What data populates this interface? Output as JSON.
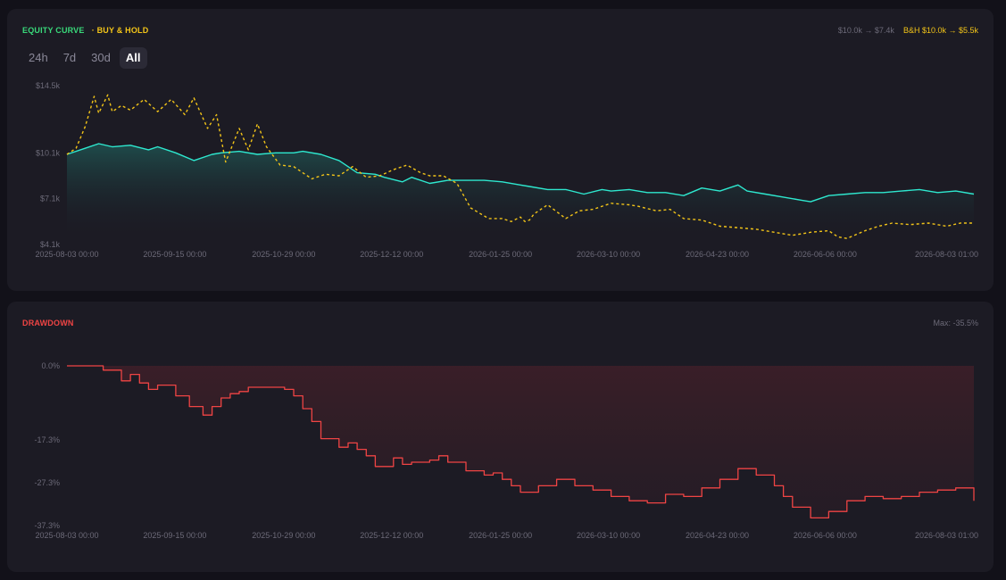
{
  "colors": {
    "equity": "#2ee8cf",
    "buy_hold": "#f2c418",
    "drawdown": "#ef4444",
    "equity_title": "#39d97a",
    "muted": "#6c6a78"
  },
  "equity_panel": {
    "title": "EQUITY CURVE",
    "legend_bh": "· BUY & HOLD",
    "summary_strategy": "$10.0k → $7.4k",
    "summary_bh": "B&H $10.0k → $5.5k",
    "tabs": [
      {
        "label": "24h",
        "active": false
      },
      {
        "label": "7d",
        "active": false
      },
      {
        "label": "30d",
        "active": false
      },
      {
        "label": "All",
        "active": true
      }
    ]
  },
  "drawdown_panel": {
    "title": "DRAWDOWN",
    "summary": "Max: -35.5%"
  },
  "chart_data": [
    {
      "type": "line",
      "title": "EQUITY CURVE",
      "ylim": [
        4.1,
        14.5
      ],
      "y_ticks": [
        "$14.5k",
        "$10.1k",
        "$7.1k",
        "$4.1k"
      ],
      "y_tick_values": [
        14.5,
        10.1,
        7.1,
        4.1
      ],
      "x_ticks": [
        "2025-08-03 00:00",
        "2025-09-15 00:00",
        "2025-10-29 00:00",
        "2025-12-12 00:00",
        "2026-01-25 00:00",
        "2026-03-10 00:00",
        "2026-04-23 00:00",
        "2026-06-06 00:00",
        "2026-08-03 01:00"
      ],
      "x_tick_positions": [
        0,
        0.119,
        0.239,
        0.358,
        0.478,
        0.597,
        0.717,
        0.836,
        1.0
      ],
      "series": [
        {
          "name": "EQUITY CURVE",
          "x": [
            0,
            0.02,
            0.035,
            0.05,
            0.07,
            0.09,
            0.1,
            0.12,
            0.14,
            0.16,
            0.17,
            0.19,
            0.21,
            0.23,
            0.25,
            0.26,
            0.28,
            0.3,
            0.32,
            0.34,
            0.35,
            0.37,
            0.38,
            0.4,
            0.42,
            0.44,
            0.46,
            0.48,
            0.5,
            0.51,
            0.53,
            0.55,
            0.57,
            0.59,
            0.6,
            0.62,
            0.64,
            0.66,
            0.68,
            0.7,
            0.72,
            0.74,
            0.75,
            0.77,
            0.79,
            0.81,
            0.82,
            0.84,
            0.86,
            0.88,
            0.9,
            0.92,
            0.94,
            0.96,
            0.98,
            1.0
          ],
          "values": [
            10.0,
            10.4,
            10.7,
            10.5,
            10.6,
            10.3,
            10.5,
            10.1,
            9.6,
            10.0,
            10.1,
            10.2,
            10.0,
            10.1,
            10.1,
            10.2,
            10.0,
            9.6,
            8.8,
            8.7,
            8.5,
            8.2,
            8.5,
            8.1,
            8.3,
            8.3,
            8.3,
            8.2,
            8.0,
            7.9,
            7.7,
            7.7,
            7.4,
            7.7,
            7.6,
            7.7,
            7.5,
            7.5,
            7.3,
            7.8,
            7.6,
            8.0,
            7.6,
            7.4,
            7.2,
            7.0,
            6.9,
            7.3,
            7.4,
            7.5,
            7.5,
            7.6,
            7.7,
            7.5,
            7.6,
            7.4
          ]
        },
        {
          "name": "BUY & HOLD",
          "x": [
            0,
            0.01,
            0.02,
            0.03,
            0.035,
            0.045,
            0.05,
            0.06,
            0.07,
            0.085,
            0.1,
            0.115,
            0.13,
            0.14,
            0.155,
            0.165,
            0.175,
            0.19,
            0.2,
            0.21,
            0.22,
            0.235,
            0.25,
            0.27,
            0.285,
            0.3,
            0.315,
            0.33,
            0.345,
            0.36,
            0.375,
            0.39,
            0.4,
            0.415,
            0.43,
            0.445,
            0.465,
            0.48,
            0.49,
            0.5,
            0.505,
            0.51,
            0.515,
            0.53,
            0.55,
            0.565,
            0.58,
            0.6,
            0.62,
            0.63,
            0.65,
            0.665,
            0.68,
            0.7,
            0.72,
            0.74,
            0.76,
            0.78,
            0.8,
            0.82,
            0.84,
            0.85,
            0.86,
            0.88,
            0.895,
            0.91,
            0.93,
            0.95,
            0.97,
            0.985,
            1.0
          ],
          "values": [
            10.0,
            10.4,
            11.8,
            13.8,
            12.7,
            13.9,
            12.8,
            13.2,
            12.9,
            13.6,
            12.8,
            13.6,
            12.6,
            13.7,
            11.7,
            12.6,
            9.5,
            11.7,
            10.3,
            12.0,
            10.5,
            9.3,
            9.2,
            8.4,
            8.7,
            8.6,
            9.2,
            8.5,
            8.6,
            9.0,
            9.3,
            8.8,
            8.6,
            8.6,
            8.1,
            6.5,
            5.8,
            5.8,
            5.6,
            5.9,
            5.6,
            5.7,
            6.1,
            6.7,
            5.8,
            6.3,
            6.4,
            6.8,
            6.7,
            6.6,
            6.3,
            6.4,
            5.8,
            5.7,
            5.3,
            5.2,
            5.1,
            4.9,
            4.7,
            4.9,
            5.0,
            4.6,
            4.5,
            5.0,
            5.3,
            5.5,
            5.4,
            5.5,
            5.3,
            5.5,
            5.5
          ]
        }
      ]
    },
    {
      "type": "line",
      "title": "DRAWDOWN",
      "ylim": [
        -37.3,
        0
      ],
      "y_ticks": [
        "0.0%",
        "-17.3%",
        "-27.3%",
        "-37.3%"
      ],
      "y_tick_values": [
        0,
        -17.3,
        -27.3,
        -37.3
      ],
      "x_ticks": [
        "2025-08-03 00:00",
        "2025-09-15 00:00",
        "2025-10-29 00:00",
        "2025-12-12 00:00",
        "2026-01-25 00:00",
        "2026-03-10 00:00",
        "2026-04-23 00:00",
        "2026-06-06 00:00",
        "2026-08-03 01:00"
      ],
      "x_tick_positions": [
        0,
        0.119,
        0.239,
        0.358,
        0.478,
        0.597,
        0.717,
        0.836,
        1.0
      ],
      "series": [
        {
          "name": "DRAWDOWN",
          "x": [
            0,
            0.04,
            0.06,
            0.07,
            0.08,
            0.09,
            0.1,
            0.12,
            0.135,
            0.15,
            0.16,
            0.17,
            0.18,
            0.19,
            0.2,
            0.22,
            0.24,
            0.25,
            0.26,
            0.27,
            0.28,
            0.3,
            0.31,
            0.32,
            0.33,
            0.34,
            0.36,
            0.37,
            0.38,
            0.39,
            0.4,
            0.41,
            0.42,
            0.44,
            0.46,
            0.47,
            0.48,
            0.49,
            0.5,
            0.52,
            0.54,
            0.56,
            0.58,
            0.6,
            0.62,
            0.64,
            0.66,
            0.68,
            0.7,
            0.72,
            0.74,
            0.76,
            0.78,
            0.79,
            0.8,
            0.82,
            0.84,
            0.86,
            0.88,
            0.9,
            0.92,
            0.94,
            0.96,
            0.98,
            1.0
          ],
          "values": [
            0.0,
            -1.0,
            -3.5,
            -2.0,
            -4.0,
            -5.5,
            -4.5,
            -7.0,
            -9.5,
            -11.5,
            -9.5,
            -7.5,
            -6.5,
            -6.0,
            -5.0,
            -5.0,
            -5.5,
            -7.0,
            -10.0,
            -13.0,
            -17.0,
            -19.0,
            -18.0,
            -19.5,
            -21.0,
            -23.5,
            -21.5,
            -23.0,
            -22.5,
            -22.5,
            -22.0,
            -21.0,
            -22.5,
            -24.5,
            -25.5,
            -25.0,
            -26.5,
            -28.0,
            -29.5,
            -28.0,
            -26.5,
            -28.0,
            -29.0,
            -30.5,
            -31.5,
            -32.0,
            -30.0,
            -30.5,
            -28.5,
            -26.5,
            -24.0,
            -25.5,
            -28.0,
            -30.5,
            -33.0,
            -35.5,
            -34.0,
            -31.5,
            -30.5,
            -31.0,
            -30.5,
            -29.5,
            -29.0,
            -28.5,
            -31.5
          ]
        }
      ]
    }
  ]
}
